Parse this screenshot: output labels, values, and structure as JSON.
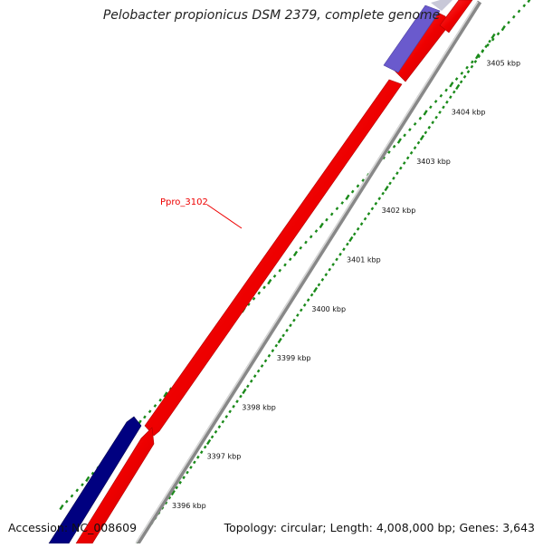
{
  "title": "Pelobacter propionicus DSM 2379, complete genome",
  "accession_text": "Accession: NC_008609",
  "topology_text": "Topology: circular; Length: 4,008,000 bp; Genes: 3,643",
  "gene_label": "Ppro_3102",
  "ticks": [
    "3396 kbp",
    "3397 kbp",
    "3398 kbp",
    "3399 kbp",
    "3400 kbp",
    "3401 kbp",
    "3402 kbp",
    "3403 kbp",
    "3404 kbp",
    "3405 kbp"
  ],
  "colors": {
    "forward_gene": "#ee0000",
    "reverse_gene_dark": "#000080",
    "reverse_gene_light": "#6a5acd",
    "backbone": "#9a9a9a",
    "tick_dots": "#1a8a1a",
    "label_line": "#ee0000"
  }
}
